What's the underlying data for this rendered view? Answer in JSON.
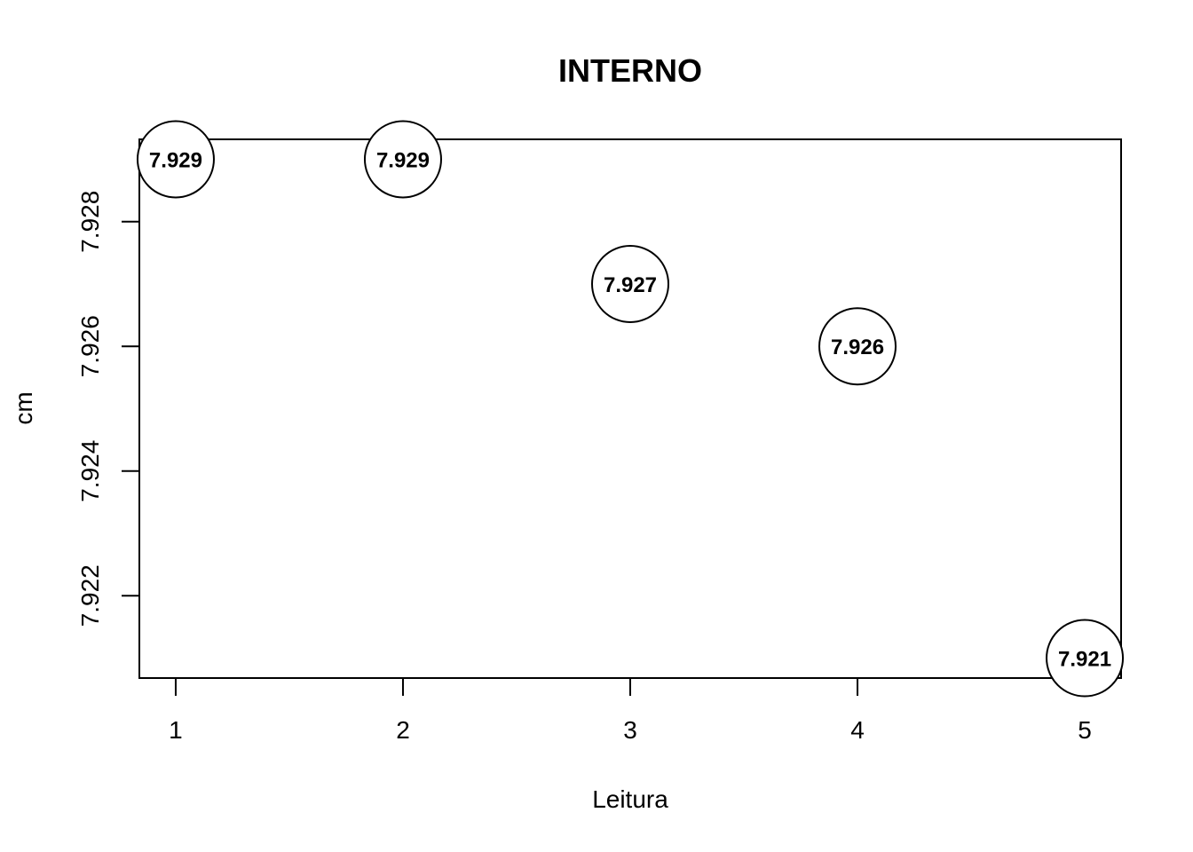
{
  "chart_data": {
    "type": "scatter",
    "title": "INTERNO",
    "xlabel": "Leitura",
    "ylabel": "cm",
    "x": [
      1,
      2,
      3,
      4,
      5
    ],
    "y": [
      7.929,
      7.929,
      7.927,
      7.926,
      7.921
    ],
    "point_labels": [
      "7.929",
      "7.929",
      "7.927",
      "7.926",
      "7.921"
    ],
    "xlim": [
      0.84,
      5.16
    ],
    "ylim": [
      7.92068,
      7.92932
    ],
    "xticks": [
      1,
      2,
      3,
      4,
      5
    ],
    "xtick_labels": [
      "1",
      "2",
      "3",
      "4",
      "5"
    ],
    "yticks": [
      7.922,
      7.924,
      7.926,
      7.928
    ],
    "ytick_labels": [
      "7.922",
      "7.924",
      "7.926",
      "7.928"
    ],
    "grid": false,
    "legend": "none",
    "marker": "open-circle-with-label",
    "colors": {
      "marker_stroke": "#000000",
      "marker_fill": "#ffffff",
      "text": "#000000"
    }
  }
}
